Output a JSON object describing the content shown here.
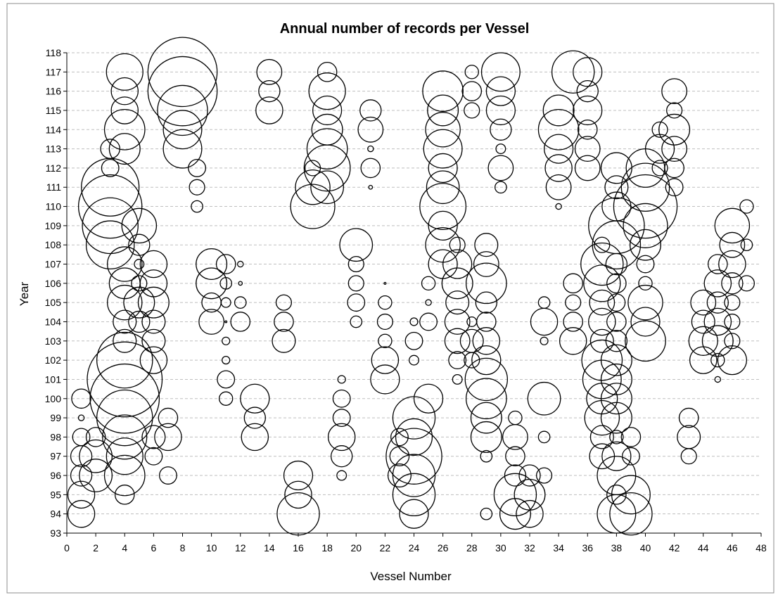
{
  "chart_data": {
    "type": "bubble",
    "title": "Annual number of records per Vessel",
    "xlabel": "Vessel Number",
    "ylabel": "Year",
    "xlim": [
      0,
      48
    ],
    "ylim": [
      93,
      118
    ],
    "xticks": [
      0,
      2,
      4,
      6,
      8,
      10,
      12,
      14,
      16,
      18,
      20,
      22,
      24,
      26,
      28,
      30,
      32,
      34,
      36,
      38,
      40,
      42,
      44,
      46,
      48
    ],
    "yticks": [
      93,
      94,
      95,
      96,
      97,
      98,
      99,
      100,
      101,
      102,
      103,
      104,
      105,
      106,
      107,
      108,
      109,
      110,
      111,
      112,
      113,
      114,
      115,
      116,
      117,
      118
    ],
    "grid": "horizontal-dashed",
    "bubble_style": "hollow black outline",
    "points": [
      [
        1,
        100,
        1
      ],
      [
        1,
        99,
        0.3
      ],
      [
        1,
        98,
        0.9
      ],
      [
        1,
        97,
        1.1
      ],
      [
        1,
        96,
        1.1
      ],
      [
        1,
        95,
        1.4
      ],
      [
        1,
        94,
        1.4
      ],
      [
        2,
        98,
        1
      ],
      [
        2,
        97,
        1.7
      ],
      [
        2,
        96,
        1.7
      ],
      [
        3,
        113,
        1
      ],
      [
        3,
        112,
        0.9
      ],
      [
        3,
        111,
        3
      ],
      [
        3,
        110,
        3.3
      ],
      [
        3,
        109,
        2.9
      ],
      [
        3,
        108,
        2.5
      ],
      [
        4,
        117,
        1.9
      ],
      [
        4,
        116,
        1.4
      ],
      [
        4,
        115,
        1.4
      ],
      [
        4,
        114,
        2.1
      ],
      [
        4,
        113,
        1.6
      ],
      [
        4,
        107,
        1.8
      ],
      [
        4,
        106,
        1.6
      ],
      [
        4,
        105,
        1.8
      ],
      [
        4,
        104,
        1.2
      ],
      [
        4,
        103,
        1.2
      ],
      [
        4,
        102,
        2.9
      ],
      [
        4,
        101,
        3.9
      ],
      [
        4,
        100,
        3.6
      ],
      [
        4,
        99,
        2.9
      ],
      [
        4,
        98,
        2.3
      ],
      [
        4,
        97,
        1.9
      ],
      [
        4,
        96,
        2.1
      ],
      [
        4,
        95,
        1
      ],
      [
        5,
        109,
        1.8
      ],
      [
        5,
        108,
        1.1
      ],
      [
        5,
        107,
        0.5
      ],
      [
        5,
        106,
        0.8
      ],
      [
        5,
        105,
        1.6
      ],
      [
        5,
        104,
        1.1
      ],
      [
        6,
        107,
        1.4
      ],
      [
        6,
        106,
        1.4
      ],
      [
        6,
        105,
        1.6
      ],
      [
        6,
        104,
        1.2
      ],
      [
        6,
        103,
        1.2
      ],
      [
        6,
        102,
        1.4
      ],
      [
        6,
        98,
        1.2
      ],
      [
        6,
        97,
        0.9
      ],
      [
        7,
        99,
        1
      ],
      [
        7,
        98,
        1.4
      ],
      [
        7,
        96,
        0.9
      ],
      [
        8,
        117,
        3.6
      ],
      [
        8,
        116,
        3.6
      ],
      [
        8,
        115,
        2.6
      ],
      [
        8,
        114,
        2
      ],
      [
        8,
        113,
        2
      ],
      [
        9,
        112,
        0.9
      ],
      [
        9,
        111,
        0.8
      ],
      [
        9,
        110,
        0.6
      ],
      [
        10,
        107,
        1.6
      ],
      [
        10,
        106,
        1.6
      ],
      [
        10,
        105,
        1
      ],
      [
        10,
        104,
        1.3
      ],
      [
        11,
        107,
        1
      ],
      [
        11,
        106,
        0.6
      ],
      [
        11,
        105,
        0.5
      ],
      [
        11,
        104,
        0.1
      ],
      [
        11,
        103,
        0.4
      ],
      [
        11,
        102,
        0.4
      ],
      [
        11,
        101,
        0.9
      ],
      [
        11,
        100,
        0.7
      ],
      [
        12,
        107,
        0.3
      ],
      [
        12,
        106,
        0.2
      ],
      [
        12,
        105,
        0.6
      ],
      [
        12,
        104,
        1
      ],
      [
        13,
        100,
        1.5
      ],
      [
        13,
        99,
        1.1
      ],
      [
        13,
        98,
        1.4
      ],
      [
        14,
        117,
        1.3
      ],
      [
        14,
        116,
        1.1
      ],
      [
        14,
        115,
        1.4
      ],
      [
        15,
        105,
        0.8
      ],
      [
        15,
        104,
        1
      ],
      [
        15,
        103,
        1.2
      ],
      [
        16,
        96,
        1.5
      ],
      [
        16,
        95,
        1.4
      ],
      [
        16,
        94,
        2.2
      ],
      [
        17,
        112,
        0.8
      ],
      [
        17,
        111,
        1.8
      ],
      [
        17,
        110,
        2.3
      ],
      [
        18,
        117,
        1
      ],
      [
        18,
        116,
        1.9
      ],
      [
        18,
        115,
        1.5
      ],
      [
        18,
        114,
        1.6
      ],
      [
        18,
        113,
        2.1
      ],
      [
        18,
        112,
        2.4
      ],
      [
        18,
        111,
        1.7
      ],
      [
        19,
        101,
        0.4
      ],
      [
        19,
        100,
        0.9
      ],
      [
        19,
        99,
        0.9
      ],
      [
        19,
        98,
        1.4
      ],
      [
        19,
        97,
        1.1
      ],
      [
        19,
        96,
        0.5
      ],
      [
        20,
        108,
        1.7
      ],
      [
        20,
        107,
        0.8
      ],
      [
        20,
        106,
        0.8
      ],
      [
        20,
        105,
        0.9
      ],
      [
        20,
        104,
        0.6
      ],
      [
        21,
        115,
        1.1
      ],
      [
        21,
        114,
        1.3
      ],
      [
        21,
        113,
        0.3
      ],
      [
        21,
        112,
        1
      ],
      [
        21,
        111,
        0.2
      ],
      [
        22,
        106,
        0.1
      ],
      [
        22,
        105,
        0.7
      ],
      [
        22,
        104,
        0.8
      ],
      [
        22,
        103,
        0.7
      ],
      [
        22,
        102,
        1.4
      ],
      [
        22,
        101,
        1.5
      ],
      [
        23,
        98,
        0.9
      ],
      [
        23,
        97,
        1
      ],
      [
        23,
        96,
        1.2
      ],
      [
        24,
        104,
        0.4
      ],
      [
        24,
        103,
        0.9
      ],
      [
        24,
        102,
        0.5
      ],
      [
        24,
        99,
        2.2
      ],
      [
        24,
        98,
        1.9
      ],
      [
        24,
        97,
        2.9
      ],
      [
        24,
        96,
        2.2
      ],
      [
        24,
        95,
        2.2
      ],
      [
        24,
        94,
        1.5
      ],
      [
        25,
        106,
        0.7
      ],
      [
        25,
        105,
        0.3
      ],
      [
        25,
        104,
        0.9
      ],
      [
        25,
        100,
        1.5
      ],
      [
        26,
        116,
        2.1
      ],
      [
        26,
        115,
        1.6
      ],
      [
        26,
        114,
        1.8
      ],
      [
        26,
        113,
        2
      ],
      [
        26,
        112,
        1.5
      ],
      [
        26,
        111,
        1.7
      ],
      [
        26,
        110,
        2.4
      ],
      [
        26,
        109,
        1.5
      ],
      [
        26,
        108,
        1.8
      ],
      [
        26,
        107,
        1.5
      ],
      [
        27,
        108,
        0.8
      ],
      [
        27,
        107,
        1.5
      ],
      [
        27,
        106,
        1.6
      ],
      [
        27,
        105,
        1.2
      ],
      [
        27,
        104,
        1.3
      ],
      [
        27,
        103,
        1.3
      ],
      [
        27,
        102,
        0.9
      ],
      [
        27,
        101,
        0.5
      ],
      [
        28,
        117,
        0.7
      ],
      [
        28,
        116,
        1
      ],
      [
        28,
        115,
        0.8
      ],
      [
        28,
        104,
        0.5
      ],
      [
        28,
        103,
        1.2
      ],
      [
        28,
        102,
        0.8
      ],
      [
        29,
        108,
        1.2
      ],
      [
        29,
        107,
        1.3
      ],
      [
        29,
        106,
        2.1
      ],
      [
        29,
        105,
        1.1
      ],
      [
        29,
        104,
        1
      ],
      [
        29,
        103,
        1.4
      ],
      [
        29,
        102,
        1.5
      ],
      [
        29,
        101,
        2.2
      ],
      [
        29,
        100,
        2.1
      ],
      [
        29,
        99,
        1.6
      ],
      [
        29,
        98,
        1.6
      ],
      [
        29,
        97,
        0.6
      ],
      [
        29,
        94,
        0.6
      ],
      [
        30,
        117,
        2
      ],
      [
        30,
        116,
        1.5
      ],
      [
        30,
        115,
        1.5
      ],
      [
        30,
        114,
        1.1
      ],
      [
        30,
        113,
        0.5
      ],
      [
        30,
        112,
        1.3
      ],
      [
        30,
        111,
        0.6
      ],
      [
        31,
        99,
        0.7
      ],
      [
        31,
        98,
        1.3
      ],
      [
        31,
        97,
        1
      ],
      [
        31,
        96,
        1.1
      ],
      [
        31,
        95,
        2.2
      ],
      [
        31,
        94,
        1.6
      ],
      [
        32,
        96,
        1.1
      ],
      [
        32,
        95,
        1.6
      ],
      [
        32,
        94,
        1.4
      ],
      [
        33,
        105,
        0.6
      ],
      [
        33,
        104,
        1.4
      ],
      [
        33,
        103,
        0.4
      ],
      [
        33,
        100,
        1.7
      ],
      [
        33,
        98,
        0.6
      ],
      [
        33,
        96,
        0.8
      ],
      [
        34,
        115,
        1.6
      ],
      [
        34,
        114,
        2.1
      ],
      [
        34,
        113,
        1.5
      ],
      [
        34,
        112,
        1.4
      ],
      [
        34,
        111,
        1.3
      ],
      [
        34,
        110,
        0.3
      ],
      [
        35,
        117,
        2.2
      ],
      [
        35,
        106,
        1
      ],
      [
        35,
        105,
        0.8
      ],
      [
        35,
        104,
        1
      ],
      [
        35,
        103,
        1.4
      ],
      [
        36,
        117,
        1.5
      ],
      [
        36,
        116,
        1.1
      ],
      [
        36,
        115,
        1.5
      ],
      [
        36,
        114,
        1
      ],
      [
        36,
        113,
        1.3
      ],
      [
        36,
        112,
        1.3
      ],
      [
        37,
        108,
        0.8
      ],
      [
        37,
        107,
        2.2
      ],
      [
        37,
        106,
        1.9
      ],
      [
        37,
        105,
        1.3
      ],
      [
        37,
        104,
        1.4
      ],
      [
        37,
        103,
        1.2
      ],
      [
        37,
        102,
        2.1
      ],
      [
        37,
        101,
        2
      ],
      [
        37,
        100,
        1.6
      ],
      [
        37,
        99,
        1.8
      ],
      [
        37,
        98,
        1.2
      ],
      [
        37,
        97,
        1.3
      ],
      [
        38,
        112,
        1.6
      ],
      [
        38,
        111,
        1.2
      ],
      [
        38,
        110,
        1.5
      ],
      [
        38,
        109,
        2.9
      ],
      [
        38,
        108,
        2.5
      ],
      [
        38,
        107,
        1.1
      ],
      [
        38,
        106,
        1
      ],
      [
        38,
        105,
        0.9
      ],
      [
        38,
        104,
        1
      ],
      [
        38,
        103,
        1.1
      ],
      [
        38,
        102,
        1.6
      ],
      [
        38,
        101,
        1.6
      ],
      [
        38,
        100,
        1.6
      ],
      [
        38,
        99,
        1.6
      ],
      [
        38,
        98,
        0.7
      ],
      [
        38,
        97,
        1.5
      ],
      [
        38,
        96,
        2
      ],
      [
        38,
        95,
        1
      ],
      [
        38,
        94,
        2
      ],
      [
        39,
        98,
        1
      ],
      [
        39,
        97,
        0.9
      ],
      [
        39,
        95,
        2
      ],
      [
        39,
        94,
        2.2
      ],
      [
        40,
        112,
        2
      ],
      [
        40,
        111,
        2.5
      ],
      [
        40,
        110,
        3.3
      ],
      [
        40,
        109,
        2.3
      ],
      [
        40,
        108,
        1.6
      ],
      [
        40,
        107,
        0.9
      ],
      [
        40,
        106,
        0.7
      ],
      [
        40,
        105,
        1.8
      ],
      [
        40,
        104,
        1.5
      ],
      [
        40,
        103,
        2.1
      ],
      [
        41,
        114,
        0.8
      ],
      [
        41,
        113,
        1.5
      ],
      [
        41,
        112,
        0.8
      ],
      [
        42,
        116,
        1.3
      ],
      [
        42,
        115,
        0.8
      ],
      [
        42,
        114,
        1.6
      ],
      [
        42,
        113,
        1.3
      ],
      [
        42,
        112,
        1
      ],
      [
        42,
        111,
        0.9
      ],
      [
        43,
        99,
        1
      ],
      [
        43,
        98,
        1.2
      ],
      [
        43,
        97,
        0.8
      ],
      [
        44,
        105,
        1.3
      ],
      [
        44,
        104,
        1.2
      ],
      [
        44,
        103,
        1.5
      ],
      [
        44,
        102,
        1.4
      ],
      [
        45,
        107,
        1
      ],
      [
        45,
        106,
        1.4
      ],
      [
        45,
        105,
        1.1
      ],
      [
        45,
        104,
        1.4
      ],
      [
        45,
        103,
        1.6
      ],
      [
        45,
        102,
        0.7
      ],
      [
        45,
        101,
        0.3
      ],
      [
        46,
        109,
        1.8
      ],
      [
        46,
        108,
        1.3
      ],
      [
        46,
        107,
        1.4
      ],
      [
        46,
        106,
        1.1
      ],
      [
        46,
        105,
        0.8
      ],
      [
        46,
        104,
        0.8
      ],
      [
        46,
        103,
        0.8
      ],
      [
        46,
        102,
        1.5
      ],
      [
        47,
        110,
        0.7
      ],
      [
        47,
        108,
        0.6
      ],
      [
        47,
        106,
        0.8
      ]
    ]
  }
}
